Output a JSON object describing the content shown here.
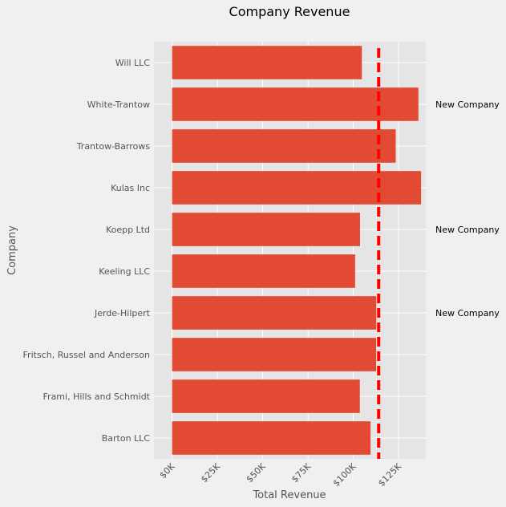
{
  "chart_data": {
    "type": "bar",
    "orientation": "horizontal",
    "title": "Company Revenue",
    "xlabel": "Total Revenue",
    "ylabel": "Company",
    "categories": [
      "Barton LLC",
      "Frami, Hills and Schmidt",
      "Fritsch, Russel and Anderson",
      "Jerde-Hilpert",
      "Keeling LLC",
      "Koepp Ltd",
      "Kulas Inc",
      "Trantow-Barrows",
      "White-Trantow",
      "Will LLC"
    ],
    "values": [
      109500,
      103600,
      112600,
      112700,
      101000,
      103700,
      137400,
      123400,
      135900,
      104700
    ],
    "xlim": [
      -10000,
      140000
    ],
    "xticks": [
      0,
      25000,
      50000,
      75000,
      100000,
      125000
    ],
    "xtick_labels": [
      "$0K",
      "$25K",
      "$50K",
      "$75K",
      "$100K",
      "$125K"
    ],
    "reference_line": {
      "value": 114000,
      "style": "dashed",
      "color": "#ff0000"
    },
    "annotations": [
      {
        "category": "White-Trantow",
        "text": "New Company"
      },
      {
        "category": "Koepp Ltd",
        "text": "New Company"
      },
      {
        "category": "Jerde-Hilpert",
        "text": "New Company"
      }
    ],
    "grid": true,
    "bar_color": "#e24a33",
    "plot_bg": "#e5e5e5"
  }
}
